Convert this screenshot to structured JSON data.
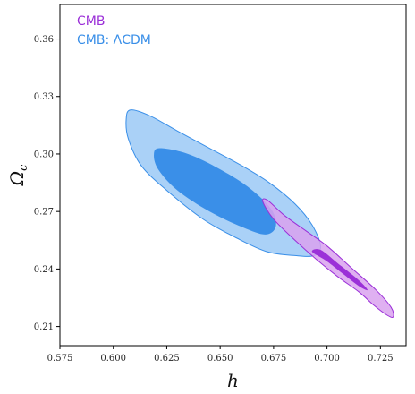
{
  "chart_data": {
    "type": "contour",
    "xlabel": "h",
    "ylabel": "Ω",
    "ylabel_subscript": "c",
    "xlim": [
      0.575,
      0.737
    ],
    "ylim": [
      0.2,
      0.378
    ],
    "x_ticks": [
      0.575,
      0.6,
      0.625,
      0.65,
      0.675,
      0.7,
      0.725
    ],
    "x_tick_labels": [
      "0.575",
      "0.600",
      "0.625",
      "0.650",
      "0.675",
      "0.700",
      "0.725"
    ],
    "y_ticks": [
      0.21,
      0.24,
      0.27,
      0.3,
      0.33,
      0.36
    ],
    "y_tick_labels": [
      "0.21",
      "0.24",
      "0.27",
      "0.30",
      "0.33",
      "0.36"
    ],
    "grid": false,
    "legend_position": "top-left",
    "series": [
      {
        "name": "CMB",
        "color": "#9b30d8",
        "outer_color": "#d9a2ee",
        "contours": {
          "outer_95": [
            [
              0.67,
              0.275
            ],
            [
              0.675,
              0.266
            ],
            [
              0.685,
              0.255
            ],
            [
              0.695,
              0.245
            ],
            [
              0.705,
              0.236
            ],
            [
              0.715,
              0.228
            ],
            [
              0.722,
              0.221
            ],
            [
              0.728,
              0.216
            ],
            [
              0.731,
              0.215
            ],
            [
              0.73,
              0.22
            ],
            [
              0.723,
              0.229
            ],
            [
              0.712,
              0.24
            ],
            [
              0.7,
              0.252
            ],
            [
              0.69,
              0.26
            ],
            [
              0.68,
              0.268
            ],
            [
              0.672,
              0.276
            ]
          ],
          "inner_68": [
            [
              0.693,
              0.249
            ],
            [
              0.7,
              0.244
            ],
            [
              0.708,
              0.237
            ],
            [
              0.715,
              0.231
            ],
            [
              0.719,
              0.229
            ],
            [
              0.715,
              0.234
            ],
            [
              0.705,
              0.243
            ],
            [
              0.697,
              0.25
            ]
          ]
        }
      },
      {
        "name": "CMB: ΛCDM",
        "color": "#3a8fe8",
        "outer_color": "#aad1f7",
        "contours": {
          "outer_95": [
            [
              0.608,
              0.323
            ],
            [
              0.617,
              0.32
            ],
            [
              0.63,
              0.312
            ],
            [
              0.645,
              0.303
            ],
            [
              0.66,
              0.294
            ],
            [
              0.673,
              0.285
            ],
            [
              0.685,
              0.274
            ],
            [
              0.693,
              0.263
            ],
            [
              0.697,
              0.252
            ],
            [
              0.694,
              0.247
            ],
            [
              0.685,
              0.247
            ],
            [
              0.672,
              0.249
            ],
            [
              0.658,
              0.256
            ],
            [
              0.642,
              0.266
            ],
            [
              0.625,
              0.281
            ],
            [
              0.613,
              0.294
            ],
            [
              0.607,
              0.308
            ],
            [
              0.606,
              0.318
            ]
          ],
          "inner_68": [
            [
              0.622,
              0.303
            ],
            [
              0.635,
              0.3
            ],
            [
              0.65,
              0.292
            ],
            [
              0.664,
              0.282
            ],
            [
              0.674,
              0.271
            ],
            [
              0.676,
              0.262
            ],
            [
              0.671,
              0.258
            ],
            [
              0.66,
              0.262
            ],
            [
              0.645,
              0.27
            ],
            [
              0.63,
              0.281
            ],
            [
              0.621,
              0.292
            ],
            [
              0.619,
              0.3
            ]
          ]
        }
      }
    ]
  }
}
